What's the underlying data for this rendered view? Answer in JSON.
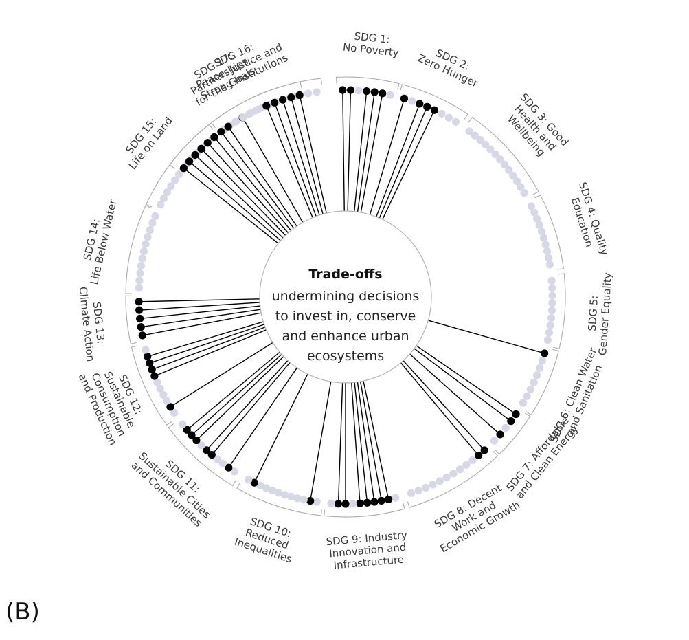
{
  "panel_letter": "(B)",
  "center": {
    "title": "Trade-offs",
    "lines": [
      "undermining decisions",
      "to invest in, conserve",
      "and enhance urban",
      "ecosystems"
    ]
  },
  "colors": {
    "dot_off": "#d6d8e6",
    "dot_on": "#000000",
    "line": "#000000",
    "bracket": "#aaaaaa"
  },
  "sdgs": [
    {
      "id": 1,
      "lines": [
        "SDG 1:",
        "No Poverty"
      ],
      "dots": 7,
      "active": [
        0,
        1,
        3,
        4,
        5
      ]
    },
    {
      "id": 2,
      "lines": [
        "SDG 2:",
        "Zero Hunger"
      ],
      "dots": 8,
      "active": [
        0,
        2,
        3,
        4
      ]
    },
    {
      "id": 3,
      "lines": [
        "SDG 3: Good",
        "Health and",
        "Wellbeing"
      ],
      "dots": 13,
      "active": []
    },
    {
      "id": 4,
      "lines": [
        "SDG 4: Quality",
        "Education"
      ],
      "dots": 10,
      "active": []
    },
    {
      "id": 5,
      "lines": [
        "SDG 5:",
        "Gender Equality"
      ],
      "dots": 9,
      "active": []
    },
    {
      "id": 6,
      "lines": [
        "SDG 6: Clean Water",
        "and Sanitation"
      ],
      "dots": 8,
      "active": [
        0
      ]
    },
    {
      "id": 7,
      "lines": [
        "SDG 7: Affordable",
        "and Clean Energy"
      ],
      "dots": 5,
      "active": [
        0,
        1,
        3
      ]
    },
    {
      "id": 8,
      "lines": [
        "SDG 8: Decent",
        "Work and",
        "Economic Growth"
      ],
      "dots": 12,
      "active": [
        0,
        1
      ]
    },
    {
      "id": 9,
      "lines": [
        "SDG 9: Industry",
        "Innovation and",
        "Infrastructure"
      ],
      "dots": 10,
      "active": [
        1,
        2,
        3,
        4,
        5,
        7,
        8
      ]
    },
    {
      "id": 10,
      "lines": [
        "SDG 10:",
        "Reduced",
        "Inequalities"
      ],
      "dots": 12,
      "active": [
        1,
        10
      ]
    },
    {
      "id": 11,
      "lines": [
        "SDG 11:",
        "Sustainable Cities",
        "and Communities"
      ],
      "dots": 11,
      "active": [
        1,
        4,
        5,
        7,
        8,
        9
      ]
    },
    {
      "id": 12,
      "lines": [
        "SDG 12:",
        "Sustainable",
        "Consumption",
        "and Production"
      ],
      "dots": 11,
      "active": [
        1,
        6,
        7,
        8,
        9
      ]
    },
    {
      "id": 13,
      "lines": [
        "SDG 13:",
        "Climate Action"
      ],
      "dots": 5,
      "active": [
        0,
        1,
        2,
        3,
        4
      ]
    },
    {
      "id": 14,
      "lines": [
        "SDG 14:",
        "Life Below Water"
      ],
      "dots": 11,
      "active": []
    },
    {
      "id": 15,
      "lines": [
        "SDG 15:",
        "Life on Land"
      ],
      "dots": 13,
      "active": []
    },
    {
      "id": 16,
      "lines": [
        "SDG 16:",
        "Peace, Justice and",
        "Strong Institutions"
      ],
      "dots": 12,
      "active": [
        3
      ]
    },
    {
      "id": 17,
      "lines": [
        "SDG 17:",
        "Partnerships",
        "for the Goals"
      ],
      "dots": 19,
      "active": [
        0,
        1,
        2,
        3,
        4,
        5,
        6,
        7,
        12,
        13,
        14,
        15,
        16
      ]
    }
  ]
}
